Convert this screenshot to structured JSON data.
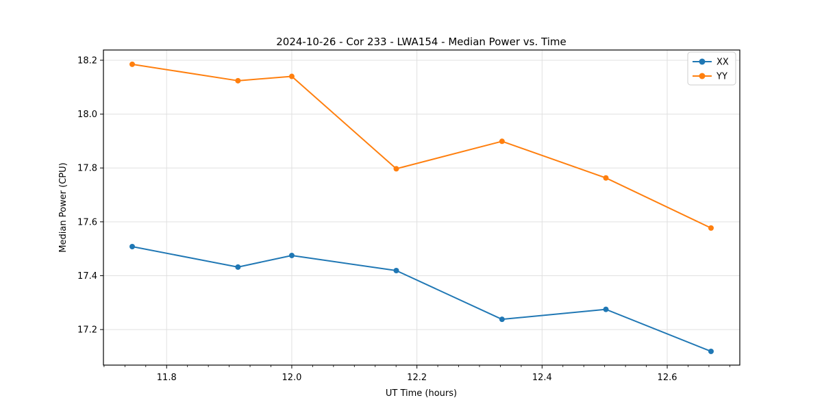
{
  "chart_data": {
    "type": "line",
    "title": "2024-10-26 - Cor 233 - LWA154 - Median Power vs. Time",
    "xlabel": "UT Time (hours)",
    "ylabel": "Median Power (CPU)",
    "xlim": [
      11.699,
      12.716
    ],
    "ylim": [
      17.068,
      18.238
    ],
    "x_ticks": [
      11.8,
      12.0,
      12.2,
      12.4,
      12.6
    ],
    "x_tick_labels": [
      "11.8",
      "12.0",
      "12.2",
      "12.4",
      "12.6"
    ],
    "x_minor_tick_step": 0.0333333,
    "y_ticks": [
      17.2,
      17.4,
      17.6,
      17.8,
      18.0,
      18.2
    ],
    "y_tick_labels": [
      "17.2",
      "17.4",
      "17.6",
      "17.8",
      "18.0",
      "18.2"
    ],
    "grid": true,
    "legend_position": "upper right",
    "x": [
      11.745,
      11.914,
      12.0,
      12.167,
      12.336,
      12.502,
      12.67
    ],
    "series": [
      {
        "name": "XX",
        "color": "#1f77b4",
        "values": [
          17.508,
          17.432,
          17.475,
          17.419,
          17.238,
          17.275,
          17.119
        ]
      },
      {
        "name": "YY",
        "color": "#ff7f0e",
        "values": [
          18.185,
          18.124,
          18.14,
          17.797,
          17.899,
          17.763,
          17.577
        ]
      }
    ]
  },
  "colors": {
    "background": "#ffffff",
    "spine": "#000000",
    "grid": "#e0e0e0",
    "tick": "#000000",
    "legend_border": "#cccccc",
    "legend_background": "#ffffff",
    "series_xx": "#1f77b4",
    "series_yy": "#ff7f0e"
  }
}
